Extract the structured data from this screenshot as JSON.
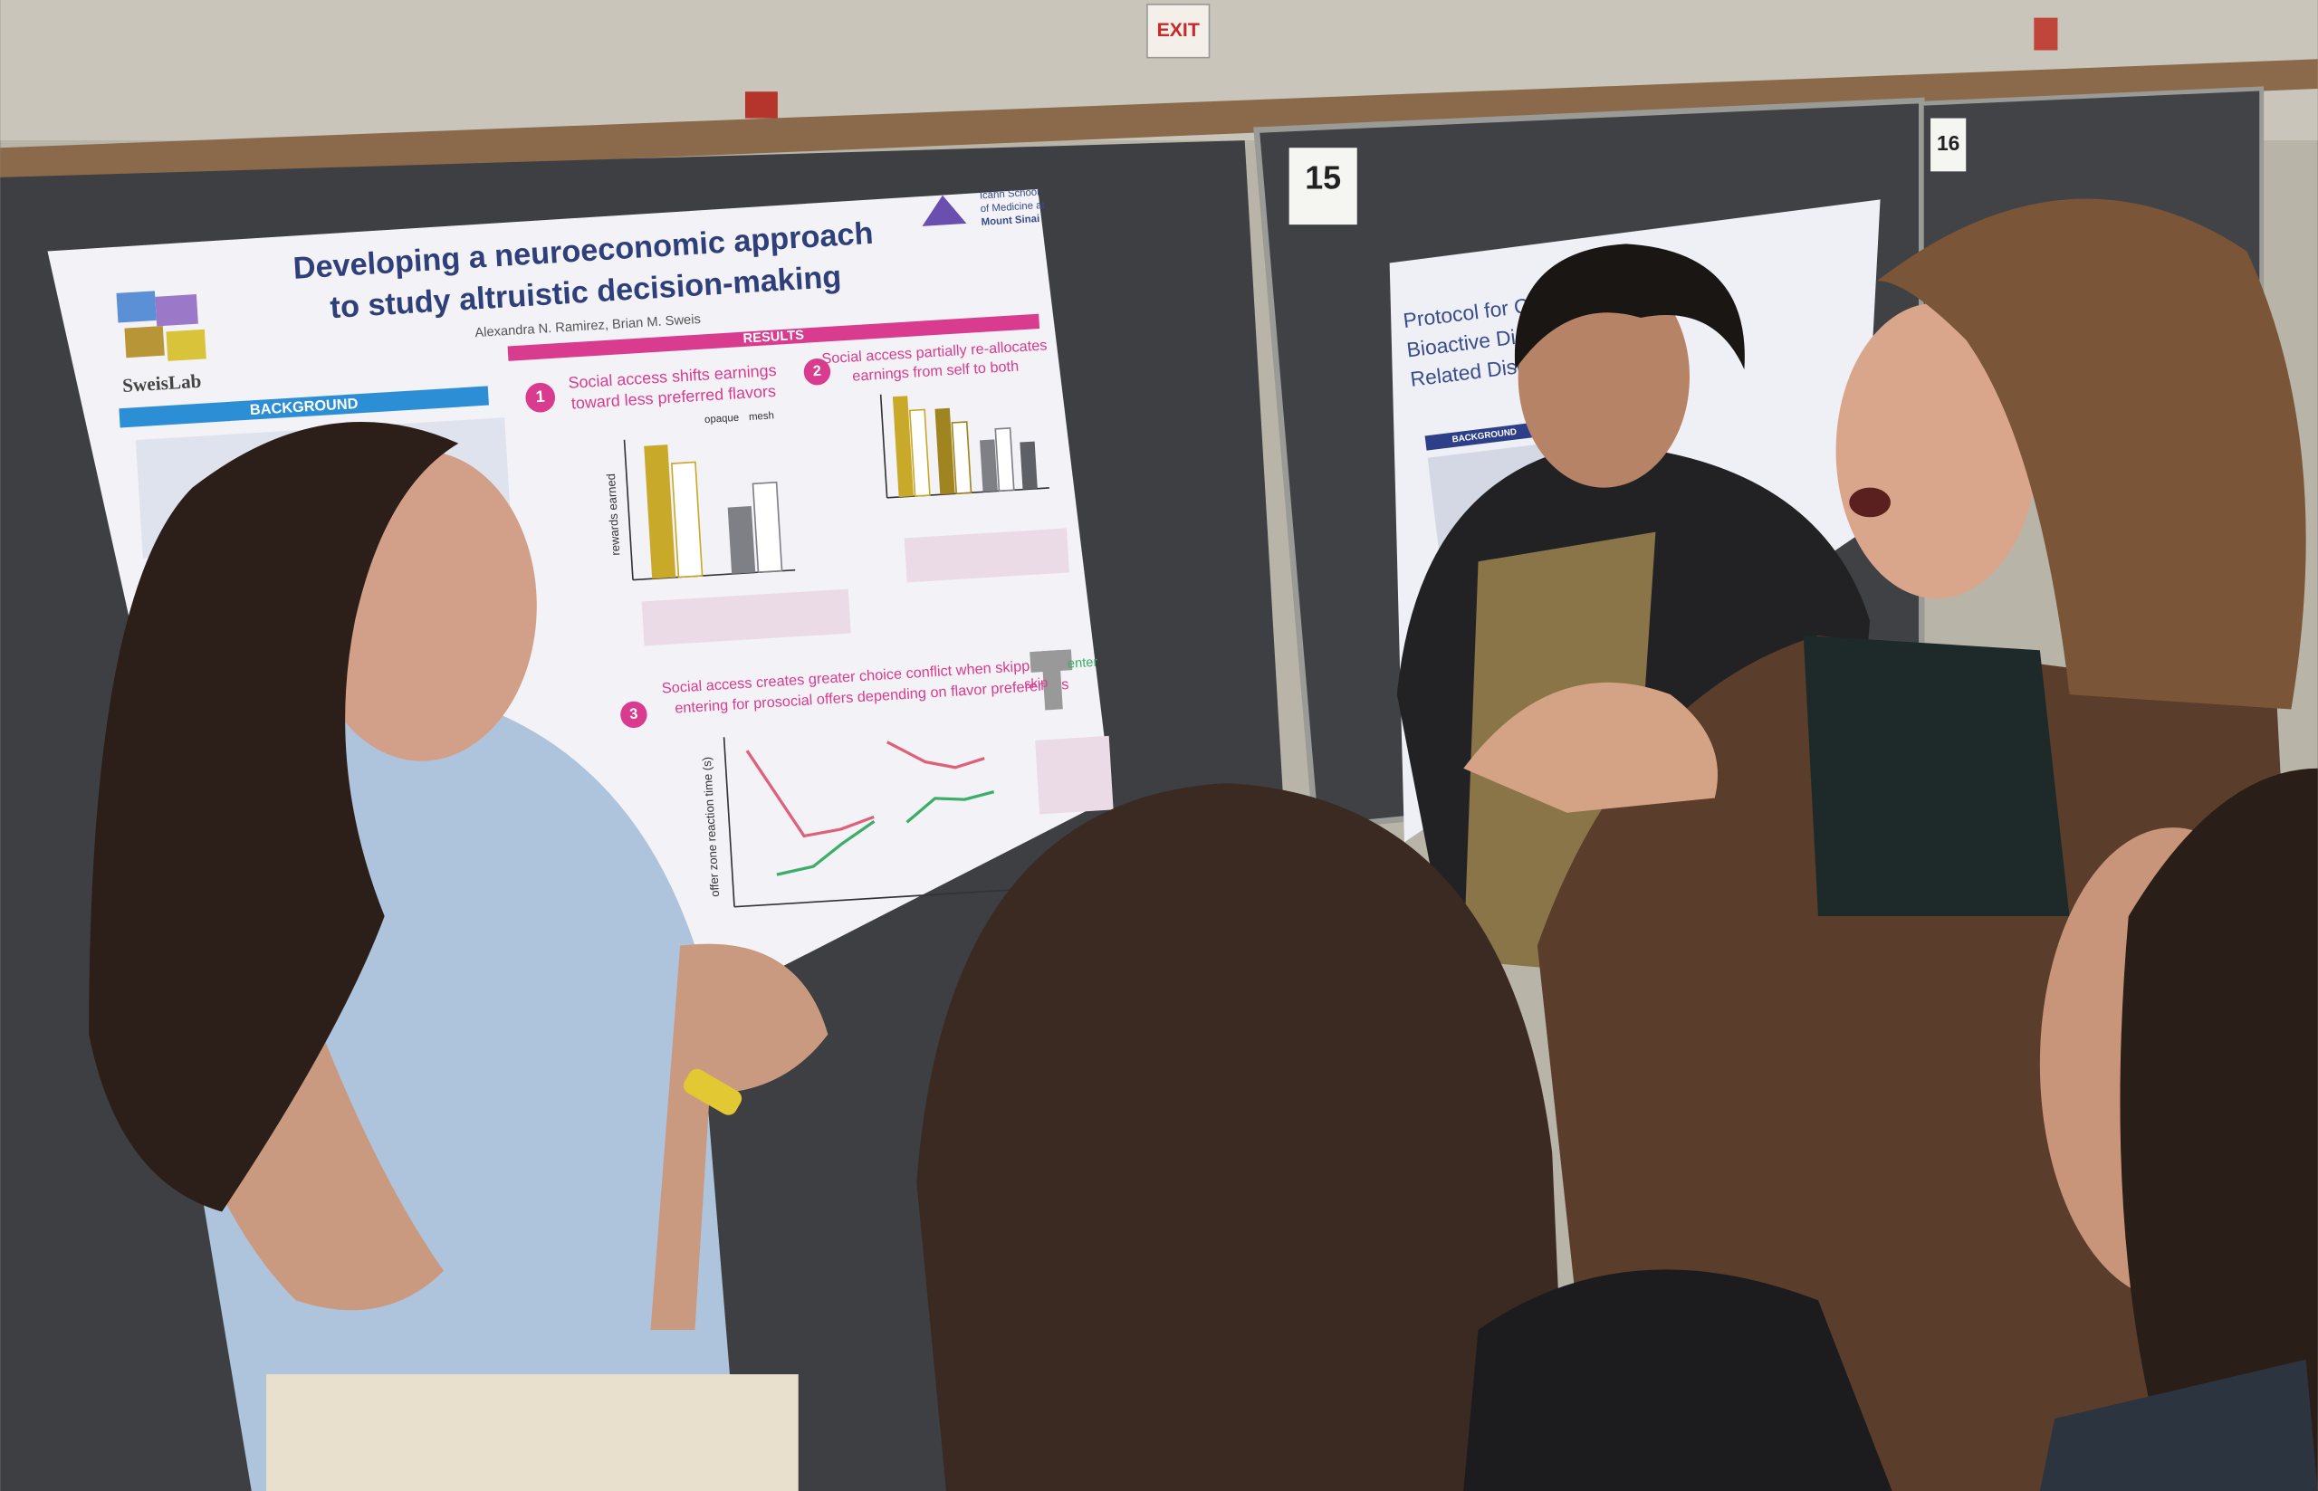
{
  "signs": {
    "exit": "EXIT",
    "board_15": "15",
    "board_16": "16"
  },
  "poster": {
    "title_line1": "Developing a neuroeconomic approach",
    "title_line2": "to study altruistic decision-making",
    "authors": "Alexandra N. Ramirez, Brian M. Sweis",
    "lab": "SweisLab",
    "institution": [
      "Icahn School",
      "of Medicine at",
      "Mount Sinai"
    ],
    "background": "BACKGROUND",
    "results": "RESULTS",
    "sections": [
      {
        "number": "1",
        "text": [
          "Social access shifts earnings",
          "toward less preferred flavors"
        ]
      },
      {
        "number": "2",
        "text": [
          "Social access partially re-allocates",
          "earnings from self to both"
        ]
      },
      {
        "number": "3",
        "text": [
          "Social access creates greater choice conflict when skipping vs",
          "entering for prosocial offers depending on flavor preferences"
        ]
      }
    ],
    "axis_labels": [
      "rewards earned",
      "offer zone reaction time (s)"
    ],
    "legend": [
      "opaque",
      "mesh"
    ],
    "diagram_labels": [
      "skip",
      "enter"
    ]
  },
  "second_poster": {
    "title": [
      "Protocol for Clinical P",
      "Bioactive Dietar",
      "Related Disorc"
    ],
    "background": "BACKGROUND"
  }
}
